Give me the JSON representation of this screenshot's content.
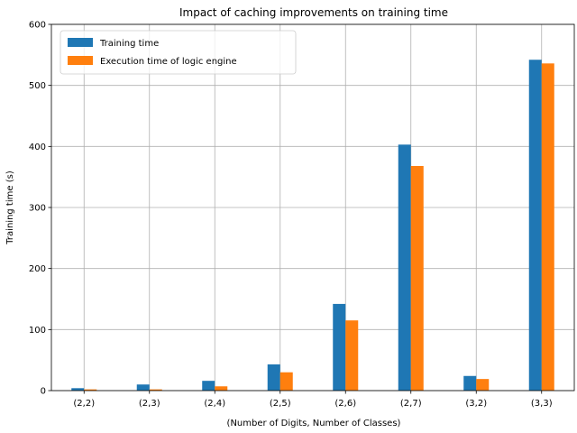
{
  "chart_data": {
    "type": "bar",
    "title": "Impact of caching improvements on training time",
    "xlabel": "(Number of Digits, Number of Classes)",
    "ylabel": "Training time (s)",
    "categories": [
      "(2,2)",
      "(2,3)",
      "(2,4)",
      "(2,5)",
      "(2,6)",
      "(2,7)",
      "(3,2)",
      "(3,3)"
    ],
    "ylim": [
      0,
      600
    ],
    "yticks": [
      0,
      100,
      200,
      300,
      400,
      500,
      600
    ],
    "grid": true,
    "legend_position": "top-left",
    "series": [
      {
        "name": "Training time",
        "color": "#1f77b4",
        "values": [
          4,
          10,
          16,
          43,
          142,
          403,
          24,
          542
        ]
      },
      {
        "name": "Execution time of logic engine",
        "color": "#ff7f0e",
        "values": [
          2,
          2,
          7,
          30,
          115,
          368,
          19,
          536
        ]
      }
    ]
  }
}
